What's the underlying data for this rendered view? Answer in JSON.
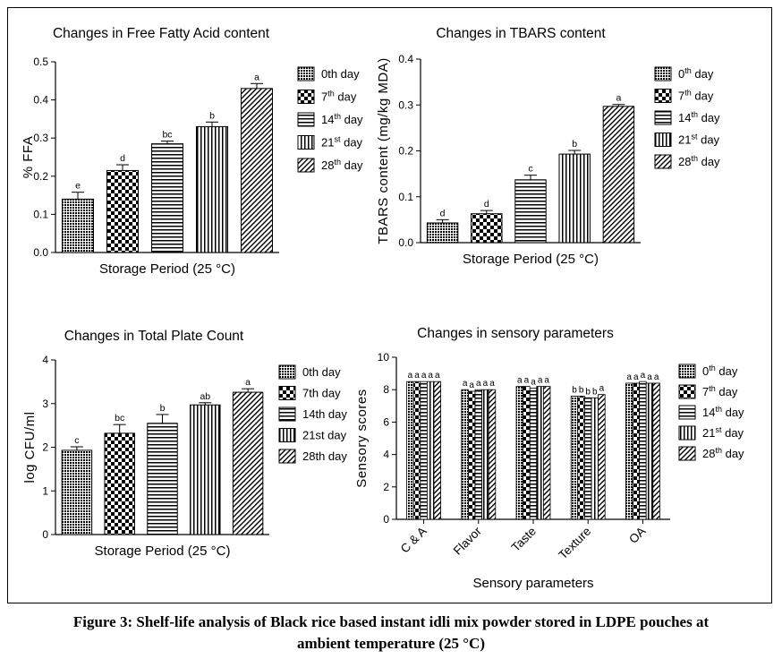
{
  "caption": {
    "line1": "Figure 3: Shelf-life analysis of Black rice based instant idli mix powder stored in LDPE pouches at",
    "line2": "ambient temperature (25 °C)"
  },
  "chart_data": [
    {
      "type": "bar",
      "title": "Changes in Free Fatty Acid content",
      "xlabel": "Storage Period (25 °C)",
      "ylabel": "% FFA",
      "ylim": [
        0,
        0.5
      ],
      "yticks": [
        "0.0",
        "0.1",
        "0.2",
        "0.3",
        "0.4",
        "0.5"
      ],
      "categories": [],
      "series": [
        {
          "name": "0th day",
          "sup": "",
          "suffix": "",
          "value": 0.14,
          "error": 0.018,
          "letter": "e",
          "pattern": "dots"
        },
        {
          "name": "7",
          "sup": "th",
          "suffix": " day",
          "value": 0.215,
          "error": 0.015,
          "letter": "d",
          "pattern": "checker"
        },
        {
          "name": "14",
          "sup": "th",
          "suffix": " day",
          "value": 0.285,
          "error": 0.007,
          "letter": "bc",
          "pattern": "hlines"
        },
        {
          "name": "21",
          "sup": "st",
          "suffix": " day",
          "value": 0.33,
          "error": 0.012,
          "letter": "b",
          "pattern": "vlines"
        },
        {
          "name": "28",
          "sup": "th",
          "suffix": " day",
          "value": 0.43,
          "error": 0.013,
          "letter": "a",
          "pattern": "diag"
        }
      ]
    },
    {
      "type": "bar",
      "title": "Changes in TBARS content",
      "xlabel": "Storage Period (25 °C)",
      "ylabel": "TBARS content (mg/kg MDA)",
      "ylim": [
        0,
        0.4
      ],
      "yticks": [
        "0.0",
        "0.1",
        "0.2",
        "0.3",
        "0.4"
      ],
      "categories": [],
      "series": [
        {
          "name": "0",
          "sup": "th",
          "suffix": " day",
          "value": 0.043,
          "error": 0.007,
          "letter": "d",
          "pattern": "dots"
        },
        {
          "name": "7",
          "sup": "th",
          "suffix": " day",
          "value": 0.063,
          "error": 0.007,
          "letter": "d",
          "pattern": "checker"
        },
        {
          "name": "14",
          "sup": "th",
          "suffix": " day",
          "value": 0.137,
          "error": 0.01,
          "letter": "c",
          "pattern": "hlines"
        },
        {
          "name": "21",
          "sup": "st",
          "suffix": " day",
          "value": 0.193,
          "error": 0.008,
          "letter": "b",
          "pattern": "vlines"
        },
        {
          "name": "28",
          "sup": "th",
          "suffix": " day",
          "value": 0.297,
          "error": 0.004,
          "letter": "a",
          "pattern": "diag"
        }
      ]
    },
    {
      "type": "bar",
      "title": "Changes in Total Plate Count",
      "xlabel": "Storage Period (25 °C)",
      "ylabel": "log CFU/ml",
      "ylim": [
        0,
        4
      ],
      "yticks": [
        "0",
        "1",
        "2",
        "3",
        "4"
      ],
      "categories": [],
      "series": [
        {
          "name": "0th day",
          "sup": "",
          "suffix": "",
          "value": 1.93,
          "error": 0.08,
          "letter": "c",
          "pattern": "dots"
        },
        {
          "name": "7th day",
          "sup": "",
          "suffix": "",
          "value": 2.32,
          "error": 0.2,
          "letter": "bc",
          "pattern": "checker"
        },
        {
          "name": "14th day",
          "sup": "",
          "suffix": "",
          "value": 2.55,
          "error": 0.2,
          "letter": "b",
          "pattern": "hlines"
        },
        {
          "name": "21st day",
          "sup": "",
          "suffix": "",
          "value": 2.97,
          "error": 0.05,
          "letter": "ab",
          "pattern": "vlines"
        },
        {
          "name": "28th day",
          "sup": "",
          "suffix": "",
          "value": 3.26,
          "error": 0.08,
          "letter": "a",
          "pattern": "diag"
        }
      ]
    },
    {
      "type": "bar",
      "title": "Changes in sensory parameters",
      "xlabel": "Sensory parameters",
      "ylabel": "Sensory scores",
      "ylim": [
        0,
        10
      ],
      "yticks": [
        "0",
        "2",
        "4",
        "6",
        "8",
        "10"
      ],
      "categories": [
        "C & A",
        "Flavor",
        "Taste",
        "Texture",
        "OA"
      ],
      "letters": [
        [
          "a",
          "a",
          "a",
          "a",
          "a"
        ],
        [
          "a",
          "a",
          "a",
          "a",
          "a"
        ],
        [
          "a",
          "a",
          "a",
          "a",
          "a"
        ],
        [
          "b",
          "b",
          "b",
          "b",
          "a"
        ],
        [
          "a",
          "a",
          "a",
          "a",
          "a"
        ]
      ],
      "series": [
        {
          "name": "0",
          "sup": "th",
          "suffix": " day",
          "values": [
            8.5,
            8.0,
            8.2,
            7.6,
            8.4
          ],
          "pattern": "dots"
        },
        {
          "name": "7",
          "sup": "th",
          "suffix": " day",
          "values": [
            8.5,
            7.9,
            8.2,
            7.6,
            8.4
          ],
          "pattern": "checker"
        },
        {
          "name": "14",
          "sup": "th",
          "suffix": " day",
          "values": [
            8.5,
            8.0,
            8.1,
            7.5,
            8.5
          ],
          "pattern": "hlines"
        },
        {
          "name": "21",
          "sup": "st",
          "suffix": " day",
          "values": [
            8.5,
            8.0,
            8.2,
            7.5,
            8.4
          ],
          "pattern": "vlines"
        },
        {
          "name": "28",
          "sup": "th",
          "suffix": " day",
          "values": [
            8.5,
            8.0,
            8.2,
            7.7,
            8.4
          ],
          "pattern": "diag"
        }
      ]
    }
  ]
}
